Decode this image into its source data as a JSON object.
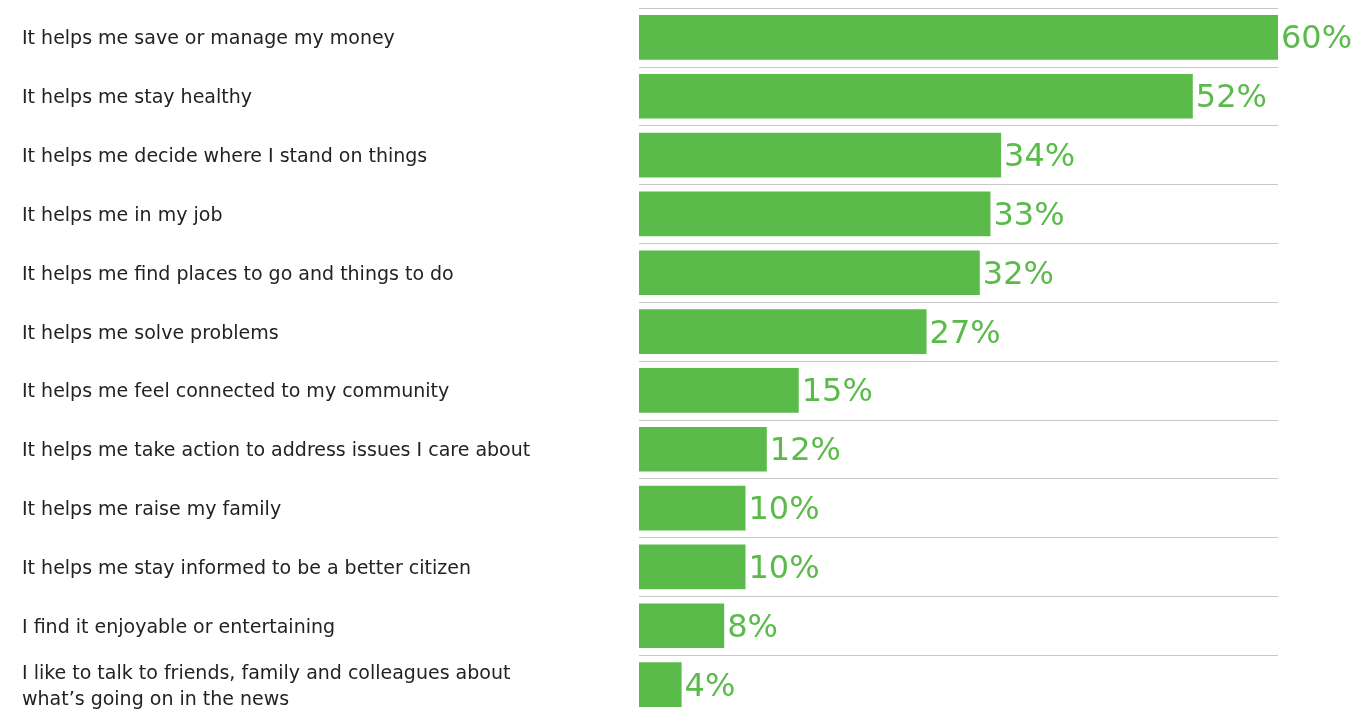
{
  "chart_data": {
    "type": "bar",
    "orientation": "horizontal",
    "categories": [
      "It helps me save or manage my money",
      "It helps me stay healthy",
      "It helps me decide where I stand on things",
      "It helps me in my job",
      "It helps me find places to go and things to do",
      "It helps me solve problems",
      "It helps me feel connected to my community",
      "It helps me take action to address issues I care about",
      "It helps me raise my family",
      "It helps me stay informed to be a better citizen",
      "I find it enjoyable or entertaining",
      "I like to talk to friends, family and colleagues about what’s going on in the news"
    ],
    "values": [
      60,
      52,
      34,
      33,
      32,
      27,
      15,
      12,
      10,
      10,
      8,
      4
    ],
    "value_labels": [
      "60%",
      "52%",
      "34%",
      "33%",
      "32%",
      "27%",
      "15%",
      "12%",
      "10%",
      "10%",
      "8%",
      "4%"
    ],
    "color": "#5bbb4a",
    "grid": "y"
  }
}
